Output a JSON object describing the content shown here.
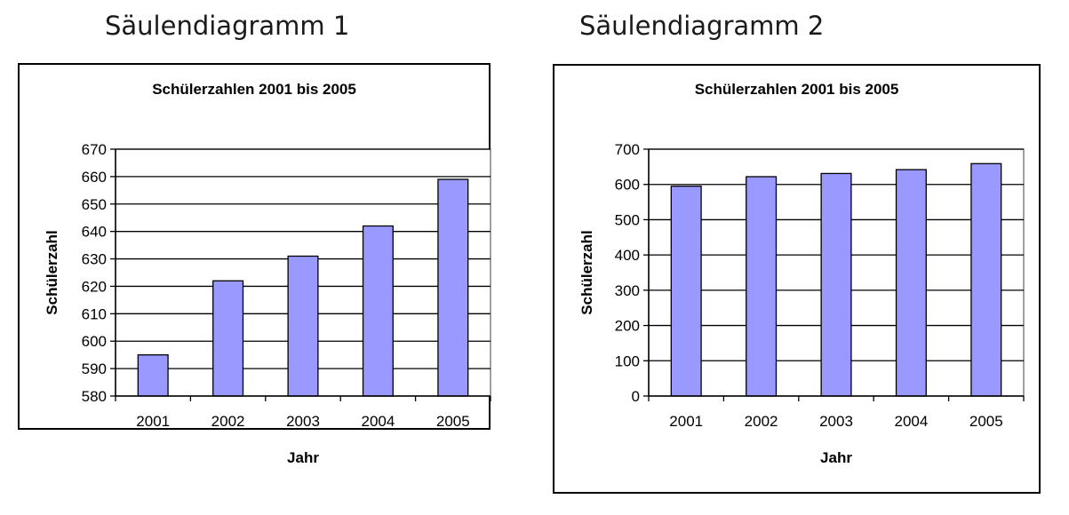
{
  "headings": {
    "left": "Säulendiagramm 1",
    "right": "Säulendiagramm 2"
  },
  "colors": {
    "bar_fill": "#9999ff",
    "bar_stroke": "#000000"
  },
  "chart_data": [
    {
      "type": "bar",
      "title": "Schülerzahlen 2001 bis 2005",
      "xlabel": "Jahr",
      "ylabel": "Schülerzahl",
      "categories": [
        "2001",
        "2002",
        "2003",
        "2004",
        "2005"
      ],
      "values": [
        595,
        622,
        631,
        642,
        659
      ],
      "ylim": [
        580,
        670
      ],
      "yticks": [
        "580",
        "590",
        "600",
        "610",
        "620",
        "630",
        "640",
        "650",
        "660",
        "670"
      ],
      "grid": "horizontal",
      "legend": "none"
    },
    {
      "type": "bar",
      "title": "Schülerzahlen 2001 bis 2005",
      "xlabel": "Jahr",
      "ylabel": "Schülerzahl",
      "categories": [
        "2001",
        "2002",
        "2003",
        "2004",
        "2005"
      ],
      "values": [
        595,
        622,
        631,
        642,
        659
      ],
      "ylim": [
        0,
        700
      ],
      "yticks": [
        "0",
        "100",
        "200",
        "300",
        "400",
        "500",
        "600",
        "700"
      ],
      "grid": "horizontal",
      "legend": "none"
    }
  ]
}
